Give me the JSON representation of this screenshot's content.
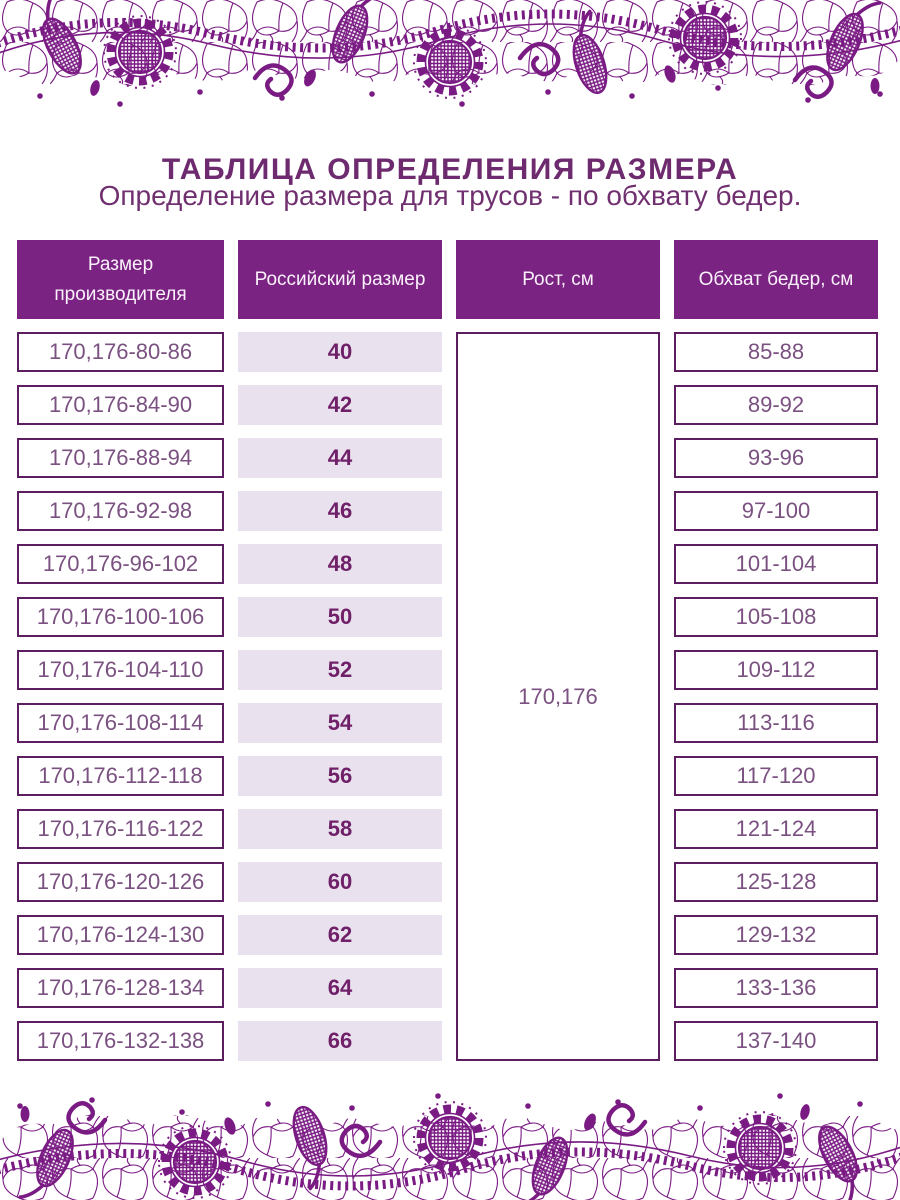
{
  "page": {
    "title": "ТАБЛИЦА ОПРЕДЕЛЕНИЯ РАЗМЕРА",
    "subtitle": "Определение размера для трусов - по обхвату бедер."
  },
  "colors": {
    "lace_purple": "#7a1b84",
    "header_background": "#7b2383",
    "header_text": "#faf1fb",
    "cell_border": "#5d1d61",
    "cell_text": "#7a5180",
    "russian_size_text": "#6f2068",
    "russian_size_background": "#e9e2ee",
    "title_text": "#6e2a6e"
  },
  "table": {
    "headers": [
      {
        "id": "manufacturer",
        "label": "Размер производителя"
      },
      {
        "id": "russian",
        "label": "Российский размер"
      },
      {
        "id": "height",
        "label": "Рост, см"
      },
      {
        "id": "hips",
        "label": "Обхват бедер, см"
      }
    ],
    "height_value": "170,176",
    "rows": [
      {
        "manufacturer": "170,176-80-86",
        "russian": "40",
        "hips": "85-88"
      },
      {
        "manufacturer": "170,176-84-90",
        "russian": "42",
        "hips": "89-92"
      },
      {
        "manufacturer": "170,176-88-94",
        "russian": "44",
        "hips": "93-96"
      },
      {
        "manufacturer": "170,176-92-98",
        "russian": "46",
        "hips": "97-100"
      },
      {
        "manufacturer": "170,176-96-102",
        "russian": "48",
        "hips": "101-104"
      },
      {
        "manufacturer": "170,176-100-106",
        "russian": "50",
        "hips": "105-108"
      },
      {
        "manufacturer": "170,176-104-110",
        "russian": "52",
        "hips": "109-112"
      },
      {
        "manufacturer": "170,176-108-114",
        "russian": "54",
        "hips": "113-116"
      },
      {
        "manufacturer": "170,176-112-118",
        "russian": "56",
        "hips": "117-120"
      },
      {
        "manufacturer": "170,176-116-122",
        "russian": "58",
        "hips": "121-124"
      },
      {
        "manufacturer": "170,176-120-126",
        "russian": "60",
        "hips": "125-128"
      },
      {
        "manufacturer": "170,176-124-130",
        "russian": "62",
        "hips": "129-132"
      },
      {
        "manufacturer": "170,176-128-134",
        "russian": "64",
        "hips": "133-136"
      },
      {
        "manufacturer": "170,176-132-138",
        "russian": "66",
        "hips": "137-140"
      }
    ]
  }
}
